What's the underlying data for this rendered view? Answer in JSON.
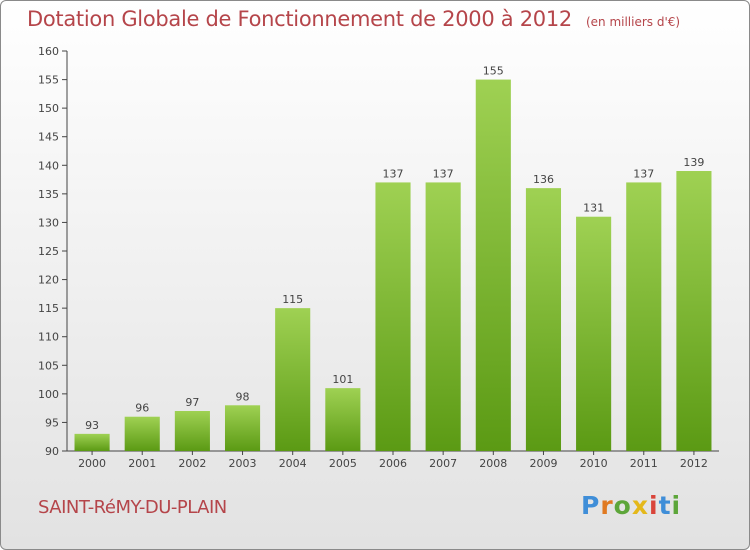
{
  "header": {
    "title": "Dotation Globale de Fonctionnement de 2000 à 2012",
    "unit": "(en milliers d'€)"
  },
  "footer": {
    "commune": "SAINT-RéMY-DU-PLAIN",
    "logo_letters": [
      "P",
      "r",
      "o",
      "x",
      "i",
      "t",
      "i"
    ]
  },
  "colors": {
    "title": "#b5454a",
    "bar_top": "#9fd153",
    "bar_bottom": "#5b9a14"
  },
  "chart_data": {
    "type": "bar",
    "title": "Dotation Globale de Fonctionnement de 2000 à 2012",
    "xlabel": "",
    "ylabel": "",
    "categories": [
      "2000",
      "2001",
      "2002",
      "2003",
      "2004",
      "2005",
      "2006",
      "2007",
      "2008",
      "2009",
      "2010",
      "2011",
      "2012"
    ],
    "values": [
      93,
      96,
      97,
      98,
      115,
      101,
      137,
      137,
      155,
      136,
      131,
      137,
      139
    ],
    "ylim": [
      90,
      160
    ],
    "yticks": [
      90,
      95,
      100,
      105,
      110,
      115,
      120,
      125,
      130,
      135,
      140,
      145,
      150,
      155,
      160
    ],
    "grid": false,
    "legend": "none"
  }
}
